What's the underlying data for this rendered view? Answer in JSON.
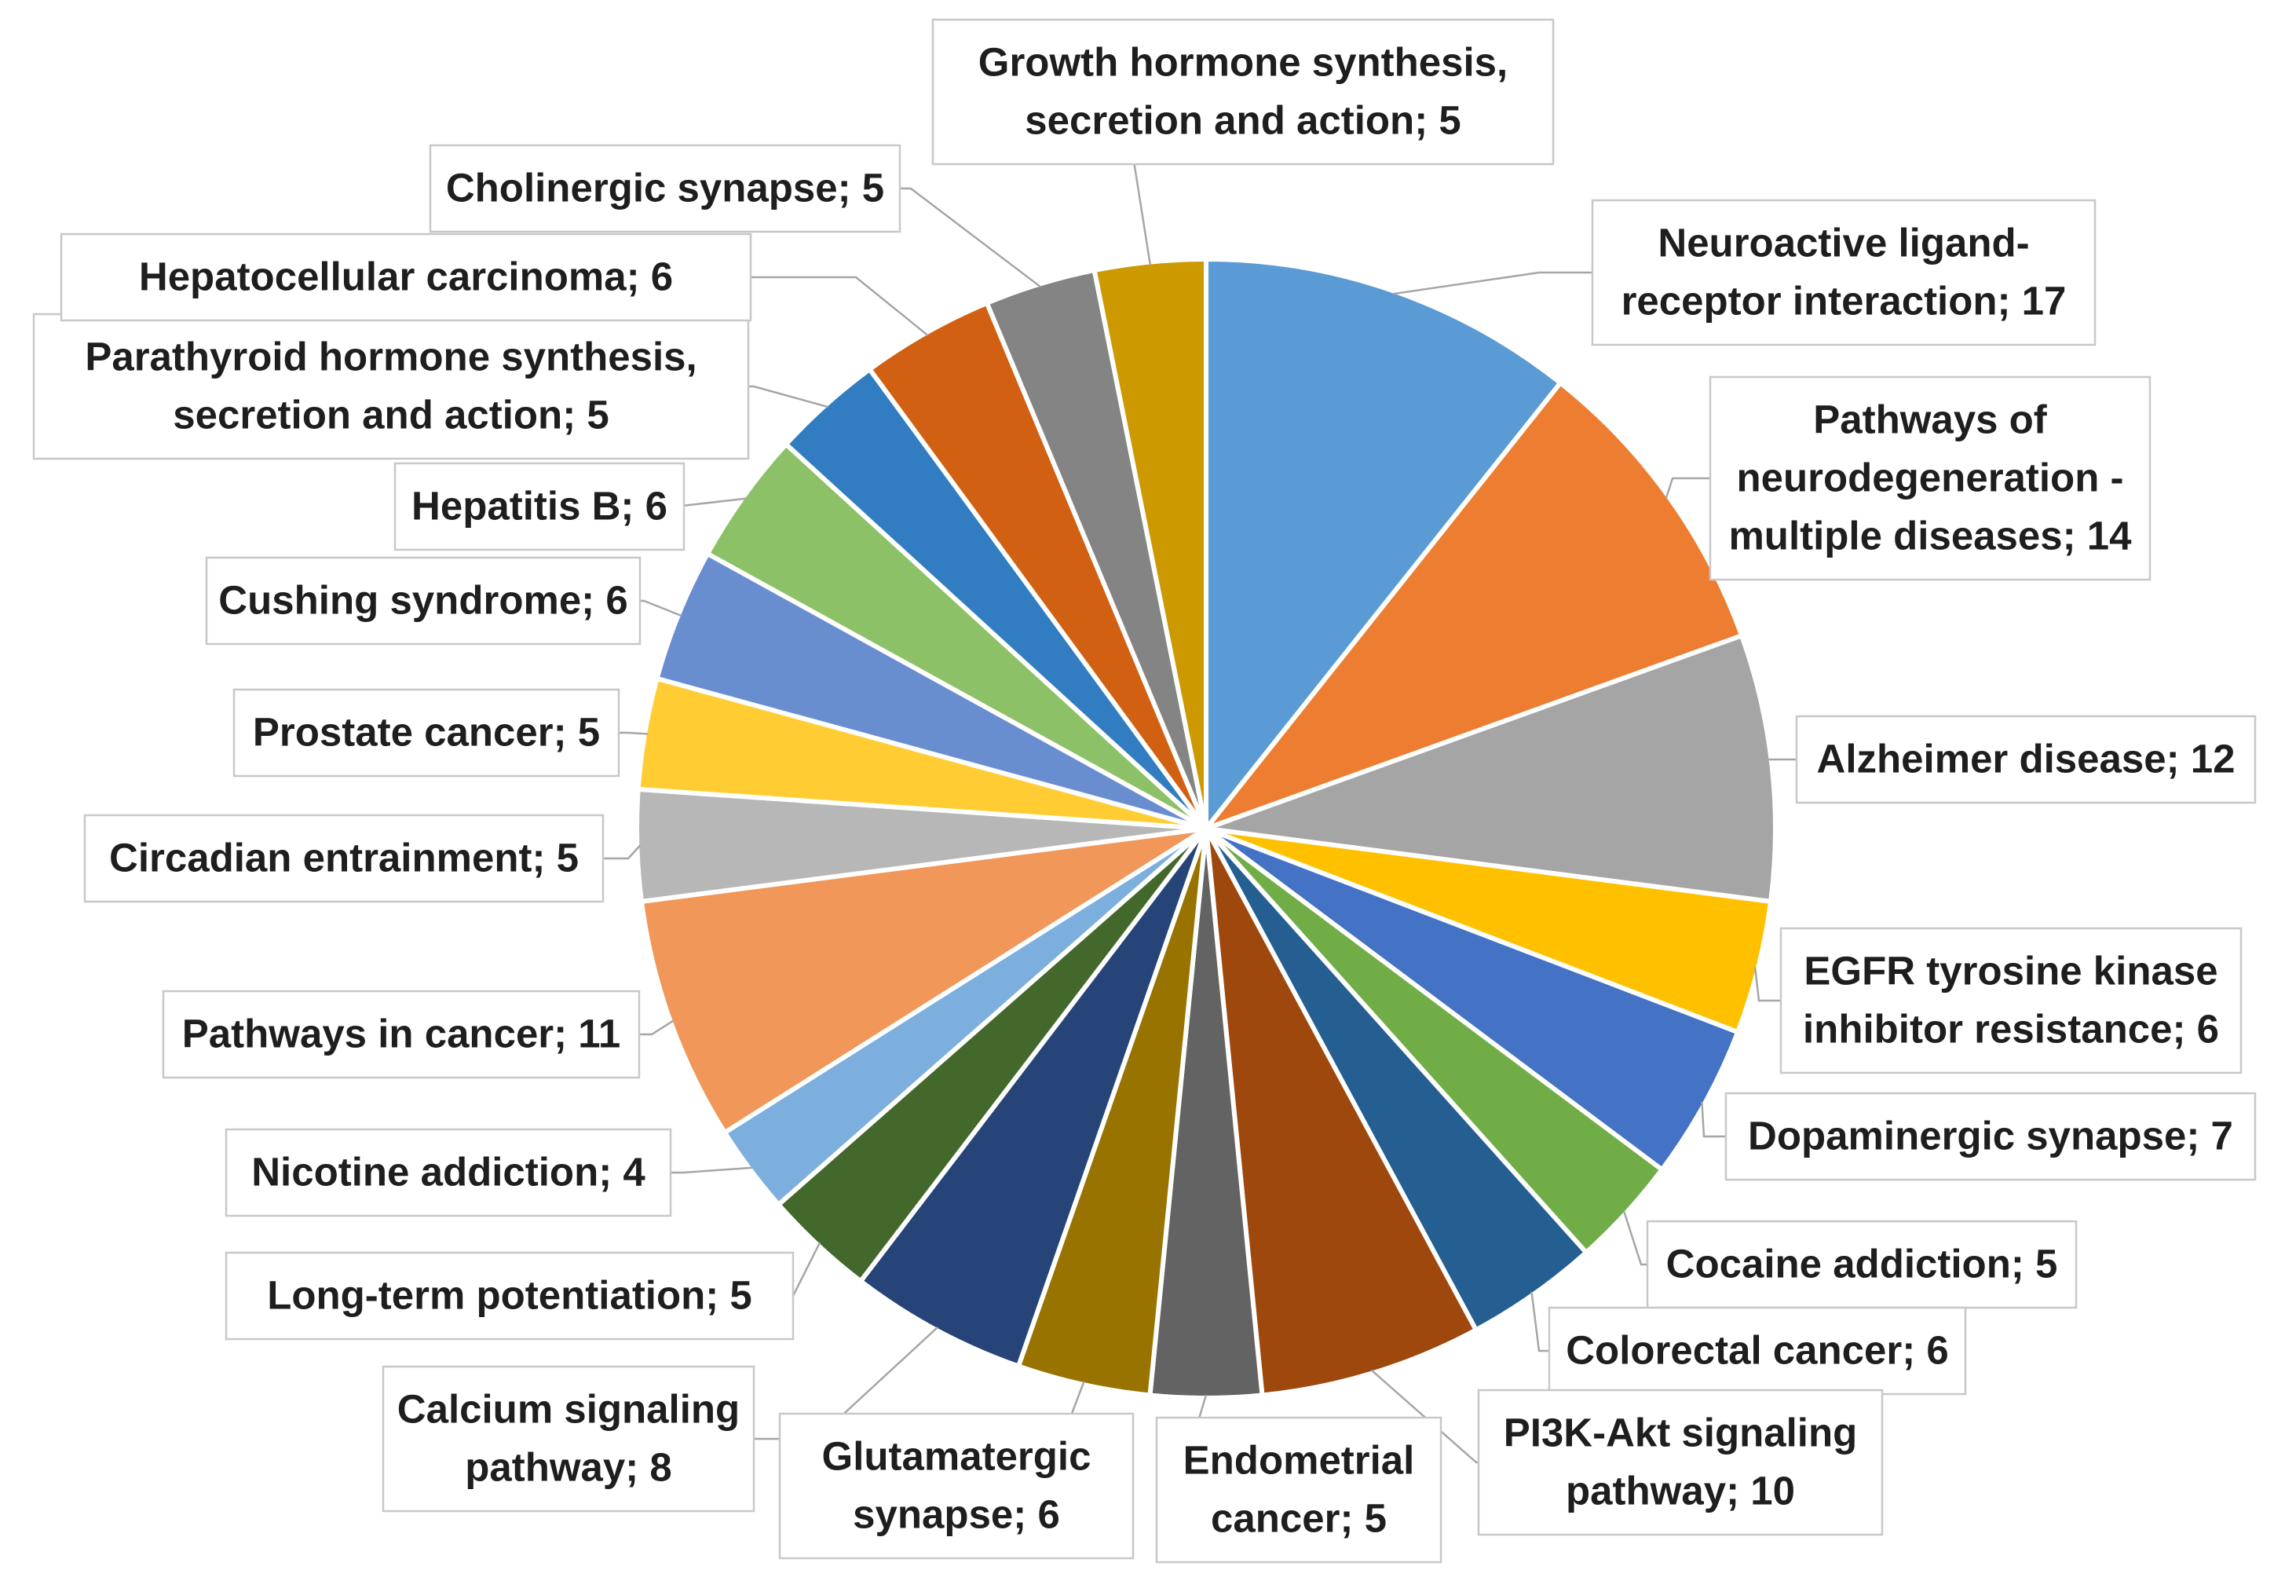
{
  "chart_data": {
    "type": "pie",
    "start_angle_deg": 0,
    "direction": "clockwise",
    "label_format": "{category}; {value}",
    "slices": [
      {
        "category": "Neuroactive ligand-receptor interaction",
        "value": 17,
        "color": "#5b9bd5",
        "label_lines": [
          "Neuroactive ligand-",
          "receptor interaction; 17"
        ]
      },
      {
        "category": "Pathways of neurodegeneration - multiple diseases",
        "value": 14,
        "color": "#ed7d31",
        "label_lines": [
          "Pathways of",
          "neurodegeneration -",
          "multiple diseases; 14"
        ]
      },
      {
        "category": "Alzheimer disease",
        "value": 12,
        "color": "#a5a5a5",
        "label_lines": [
          "Alzheimer disease; 12"
        ]
      },
      {
        "category": "EGFR tyrosine kinase inhibitor resistance",
        "value": 6,
        "color": "#ffc000",
        "label_lines": [
          "EGFR tyrosine kinase",
          "inhibitor resistance; 6"
        ]
      },
      {
        "category": "Dopaminergic synapse",
        "value": 7,
        "color": "#4472c4",
        "label_lines": [
          "Dopaminergic synapse; 7"
        ]
      },
      {
        "category": "Cocaine addiction",
        "value": 5,
        "color": "#70ad47",
        "label_lines": [
          "Cocaine addiction; 5"
        ]
      },
      {
        "category": "Colorectal cancer",
        "value": 6,
        "color": "#255e91",
        "label_lines": [
          "Colorectal cancer; 6"
        ]
      },
      {
        "category": "PI3K-Akt signaling pathway",
        "value": 10,
        "color": "#9e480e",
        "label_lines": [
          "PI3K-Akt signaling",
          "pathway; 10"
        ]
      },
      {
        "category": "Endometrial cancer",
        "value": 5,
        "color": "#636363",
        "label_lines": [
          "Endometrial",
          "cancer; 5"
        ]
      },
      {
        "category": "Glutamatergic synapse",
        "value": 6,
        "color": "#997300",
        "label_lines": [
          "Glutamatergic",
          "synapse; 6"
        ]
      },
      {
        "category": "Calcium signaling pathway",
        "value": 8,
        "color": "#264478",
        "label_lines": [
          "Calcium signaling",
          "pathway; 8"
        ]
      },
      {
        "category": "Long-term potentiation",
        "value": 5,
        "color": "#43682b",
        "label_lines": [
          "Long-term potentiation; 5"
        ]
      },
      {
        "category": "Nicotine addiction",
        "value": 4,
        "color": "#7cafdd",
        "label_lines": [
          "Nicotine addiction; 4"
        ]
      },
      {
        "category": "Pathways in cancer",
        "value": 11,
        "color": "#f1975a",
        "label_lines": [
          "Pathways in cancer; 11"
        ]
      },
      {
        "category": "Circadian entrainment",
        "value": 5,
        "color": "#b7b7b7",
        "label_lines": [
          "Circadian entrainment; 5"
        ]
      },
      {
        "category": "Prostate cancer",
        "value": 5,
        "color": "#ffcd33",
        "label_lines": [
          "Prostate cancer; 5"
        ]
      },
      {
        "category": "Cushing syndrome",
        "value": 6,
        "color": "#698ed0",
        "label_lines": [
          "Cushing syndrome; 6"
        ]
      },
      {
        "category": "Hepatitis B",
        "value": 6,
        "color": "#8cc168",
        "label_lines": [
          "Hepatitis B; 6"
        ]
      },
      {
        "category": "Parathyroid hormone synthesis, secretion and action",
        "value": 5,
        "color": "#327dc2",
        "label_lines": [
          "Parathyroid hormone synthesis,",
          "secretion and action; 5"
        ]
      },
      {
        "category": "Hepatocellular carcinoma",
        "value": 6,
        "color": "#d26012",
        "label_lines": [
          "Hepatocellular carcinoma; 6"
        ]
      },
      {
        "category": "Cholinergic synapse",
        "value": 5,
        "color": "#848484",
        "label_lines": [
          "Cholinergic synapse; 5"
        ]
      },
      {
        "category": "Growth hormone synthesis, secretion and action",
        "value": 5,
        "color": "#cc9a00",
        "label_lines": [
          "Growth hormone synthesis,",
          "secretion and action; 5"
        ]
      }
    ]
  }
}
